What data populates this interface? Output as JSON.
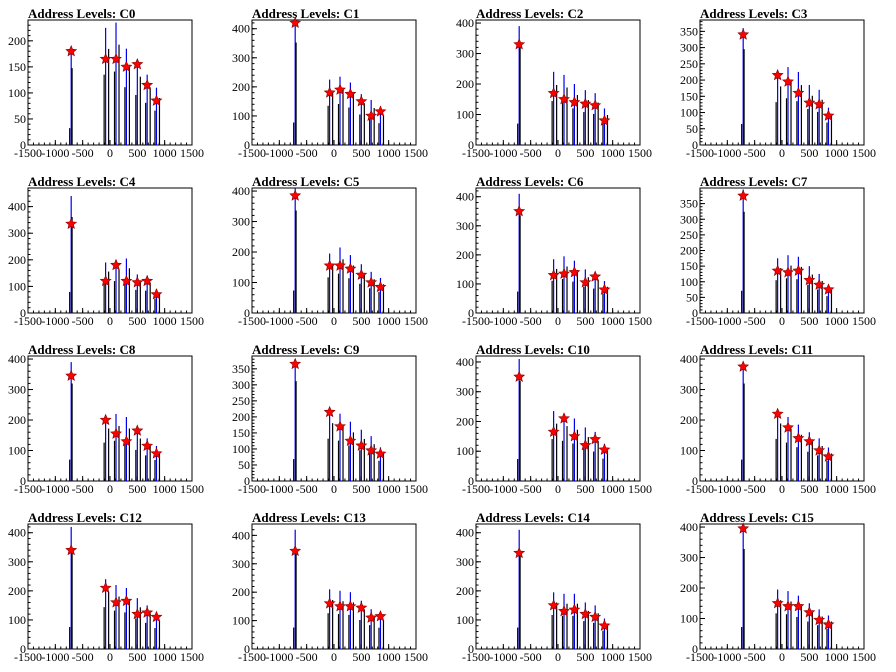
{
  "chart_data": [
    {
      "type": "bar",
      "title": "Address Levels: C0",
      "xlim": [
        -1500,
        1500
      ],
      "ylim": [
        0,
        240
      ],
      "yticks": [
        0,
        50,
        100,
        150,
        200
      ],
      "x": [
        -710,
        -80,
        110,
        300,
        500,
        680,
        850
      ],
      "peak_values": [
        180,
        225,
        235,
        185,
        160,
        135,
        110
      ],
      "fit_values": [
        180,
        165,
        165,
        150,
        155,
        115,
        85
      ]
    },
    {
      "type": "bar",
      "title": "Address Levels: C1",
      "xlim": [
        -1500,
        1500
      ],
      "ylim": [
        0,
        430
      ],
      "yticks": [
        0,
        100,
        200,
        300,
        400
      ],
      "x": [
        -710,
        -80,
        110,
        300,
        500,
        680,
        850
      ],
      "peak_values": [
        430,
        225,
        235,
        215,
        175,
        155,
        125
      ],
      "fit_values": [
        420,
        180,
        190,
        175,
        150,
        100,
        115
      ]
    },
    {
      "type": "bar",
      "title": "Address Levels: C2",
      "xlim": [
        -1500,
        1500
      ],
      "ylim": [
        0,
        410
      ],
      "yticks": [
        0,
        100,
        200,
        300,
        400
      ],
      "x": [
        -710,
        -80,
        110,
        300,
        500,
        680,
        850
      ],
      "peak_values": [
        390,
        240,
        230,
        200,
        180,
        170,
        120
      ],
      "fit_values": [
        330,
        170,
        150,
        140,
        135,
        130,
        80
      ]
    },
    {
      "type": "bar",
      "title": "Address Levels: C3",
      "xlim": [
        -1500,
        1500
      ],
      "ylim": [
        0,
        385
      ],
      "yticks": [
        0,
        50,
        100,
        150,
        200,
        250,
        300,
        350
      ],
      "x": [
        -710,
        -80,
        110,
        300,
        500,
        680,
        850
      ],
      "peak_values": [
        360,
        220,
        240,
        225,
        185,
        170,
        115
      ],
      "fit_values": [
        340,
        215,
        195,
        160,
        130,
        125,
        90
      ]
    },
    {
      "type": "bar",
      "title": "Address Levels: C4",
      "xlim": [
        -1500,
        1500
      ],
      "ylim": [
        0,
        470
      ],
      "yticks": [
        0,
        100,
        200,
        300,
        400
      ],
      "x": [
        -710,
        -80,
        110,
        300,
        500,
        680,
        850
      ],
      "peak_values": [
        440,
        190,
        200,
        205,
        145,
        140,
        90
      ],
      "fit_values": [
        335,
        120,
        180,
        120,
        115,
        120,
        70
      ]
    },
    {
      "type": "bar",
      "title": "Address Levels: C5",
      "xlim": [
        -1500,
        1500
      ],
      "ylim": [
        0,
        410
      ],
      "yticks": [
        0,
        100,
        200,
        300,
        400
      ],
      "x": [
        -710,
        -80,
        110,
        300,
        500,
        680,
        850
      ],
      "peak_values": [
        410,
        195,
        215,
        190,
        160,
        135,
        115
      ],
      "fit_values": [
        385,
        155,
        155,
        145,
        125,
        100,
        85
      ]
    },
    {
      "type": "bar",
      "title": "Address Levels: C6",
      "xlim": [
        -1500,
        1500
      ],
      "ylim": [
        0,
        430
      ],
      "yticks": [
        0,
        100,
        200,
        300,
        400
      ],
      "x": [
        -710,
        -80,
        110,
        300,
        500,
        680,
        850
      ],
      "peak_values": [
        410,
        185,
        195,
        180,
        150,
        140,
        110
      ],
      "fit_values": [
        350,
        130,
        135,
        140,
        105,
        125,
        80
      ]
    },
    {
      "type": "bar",
      "title": "Address Levels: C7",
      "xlim": [
        -1500,
        1500
      ],
      "ylim": [
        0,
        400
      ],
      "yticks": [
        0,
        50,
        100,
        150,
        200,
        250,
        300,
        350
      ],
      "x": [
        -710,
        -80,
        110,
        300,
        500,
        680,
        850
      ],
      "peak_values": [
        395,
        175,
        185,
        180,
        150,
        125,
        90
      ],
      "fit_values": [
        375,
        135,
        130,
        135,
        105,
        90,
        75
      ]
    },
    {
      "type": "bar",
      "title": "Address Levels: C8",
      "xlim": [
        -1500,
        1500
      ],
      "ylim": [
        0,
        410
      ],
      "yticks": [
        0,
        100,
        200,
        300,
        400
      ],
      "x": [
        -710,
        -80,
        110,
        300,
        500,
        680,
        850
      ],
      "peak_values": [
        390,
        210,
        220,
        210,
        170,
        140,
        115
      ],
      "fit_values": [
        345,
        200,
        155,
        130,
        165,
        115,
        90
      ]
    },
    {
      "type": "bar",
      "title": "Address Levels: C9",
      "xlim": [
        -1500,
        1500
      ],
      "ylim": [
        0,
        390
      ],
      "yticks": [
        0,
        50,
        100,
        150,
        200,
        250,
        300,
        350
      ],
      "x": [
        -710,
        -80,
        110,
        300,
        500,
        680,
        850
      ],
      "peak_values": [
        380,
        220,
        210,
        185,
        160,
        140,
        105
      ],
      "fit_values": [
        365,
        215,
        170,
        125,
        110,
        95,
        85
      ]
    },
    {
      "type": "bar",
      "title": "Address Levels: C10",
      "xlim": [
        -1500,
        1500
      ],
      "ylim": [
        0,
        420
      ],
      "yticks": [
        0,
        100,
        200,
        300,
        400
      ],
      "x": [
        -710,
        -80,
        110,
        300,
        500,
        680,
        850
      ],
      "peak_values": [
        410,
        235,
        225,
        210,
        180,
        165,
        125
      ],
      "fit_values": [
        350,
        165,
        210,
        150,
        120,
        140,
        105
      ]
    },
    {
      "type": "bar",
      "title": "Address Levels: C11",
      "xlim": [
        -1500,
        1500
      ],
      "ylim": [
        0,
        410
      ],
      "yticks": [
        0,
        100,
        200,
        300,
        400
      ],
      "x": [
        -710,
        -80,
        110,
        300,
        500,
        680,
        850
      ],
      "peak_values": [
        390,
        230,
        210,
        185,
        160,
        140,
        110
      ],
      "fit_values": [
        375,
        220,
        175,
        140,
        130,
        100,
        80
      ]
    },
    {
      "type": "bar",
      "title": "Address Levels: C12",
      "xlim": [
        -1500,
        1500
      ],
      "ylim": [
        0,
        430
      ],
      "yticks": [
        0,
        100,
        200,
        300,
        400
      ],
      "x": [
        -710,
        -80,
        110,
        300,
        500,
        680,
        850
      ],
      "peak_values": [
        420,
        240,
        220,
        210,
        175,
        150,
        120
      ],
      "fit_values": [
        340,
        210,
        160,
        165,
        120,
        125,
        110
      ]
    },
    {
      "type": "bar",
      "title": "Address Levels: C13",
      "xlim": [
        -1500,
        1500
      ],
      "ylim": [
        0,
        440
      ],
      "yticks": [
        0,
        100,
        200,
        300,
        400
      ],
      "x": [
        -710,
        -80,
        110,
        300,
        500,
        680,
        850
      ],
      "peak_values": [
        420,
        210,
        205,
        200,
        170,
        140,
        125
      ],
      "fit_values": [
        345,
        160,
        150,
        150,
        145,
        110,
        115
      ]
    },
    {
      "type": "bar",
      "title": "Address Levels: C14",
      "xlim": [
        -1500,
        1500
      ],
      "ylim": [
        0,
        430
      ],
      "yticks": [
        0,
        100,
        200,
        300,
        400
      ],
      "x": [
        -710,
        -80,
        110,
        300,
        500,
        680,
        850
      ],
      "peak_values": [
        410,
        195,
        190,
        190,
        160,
        150,
        105
      ],
      "fit_values": [
        330,
        150,
        130,
        135,
        120,
        110,
        80
      ]
    },
    {
      "type": "bar",
      "title": "Address Levels: C15",
      "xlim": [
        -1500,
        1500
      ],
      "ylim": [
        0,
        410
      ],
      "yticks": [
        0,
        100,
        200,
        300,
        400
      ],
      "x": [
        -710,
        -80,
        110,
        300,
        500,
        680,
        850
      ],
      "peak_values": [
        400,
        195,
        190,
        175,
        150,
        130,
        110
      ],
      "fit_values": [
        395,
        150,
        140,
        140,
        120,
        95,
        80
      ]
    }
  ],
  "colors": {
    "hist_line": "#0000ee",
    "side_line": "#000000",
    "marker": "#ff0000",
    "axis": "#000000"
  },
  "xticks": [
    -1500,
    -1000,
    -500,
    0,
    500,
    1000,
    1500
  ]
}
